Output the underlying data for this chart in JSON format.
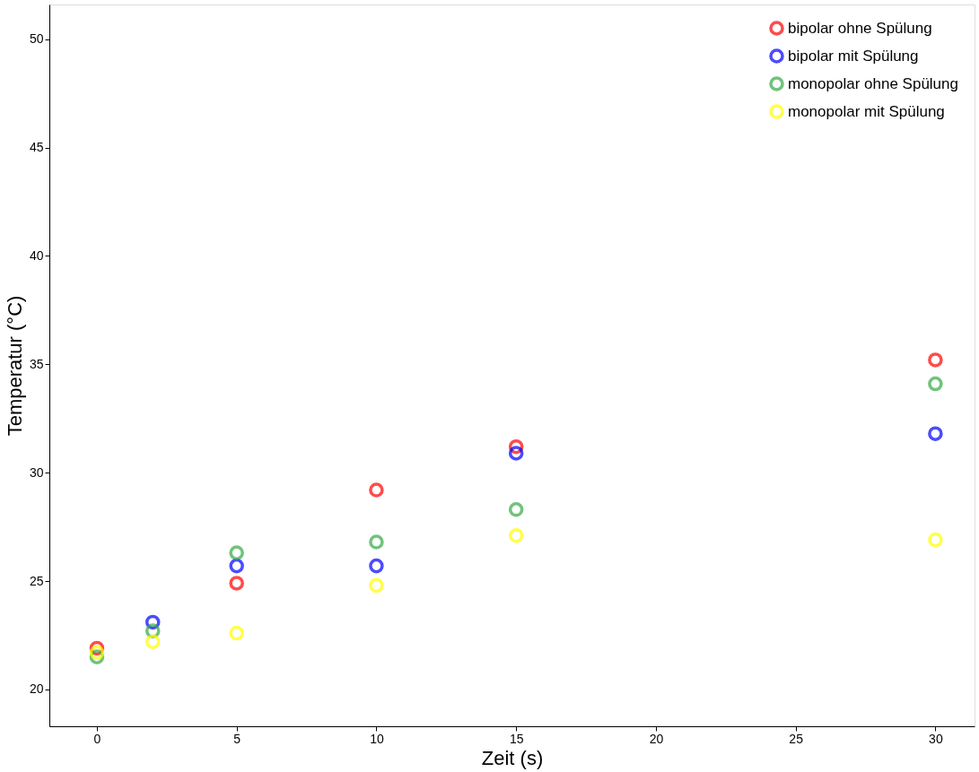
{
  "chart_data": {
    "type": "scatter",
    "xlabel": "Zeit (s)",
    "ylabel": "Temperatur (°C)",
    "x": [
      0,
      2,
      5,
      10,
      15,
      30
    ],
    "series": [
      {
        "name": "bipolar ohne Spülung",
        "color": "#ff0000",
        "values": [
          21.9,
          null,
          24.9,
          29.2,
          31.2,
          35.2
        ]
      },
      {
        "name": "bipolar mit Spülung",
        "color": "#0000ff",
        "values": [
          null,
          23.1,
          25.7,
          25.7,
          30.9,
          31.8
        ]
      },
      {
        "name": "monopolar ohne Spülung",
        "color": "#33aa44",
        "values": [
          21.5,
          22.7,
          26.3,
          26.8,
          28.3,
          34.1
        ]
      },
      {
        "name": "monopolar mit Spülung",
        "color": "#ffff00",
        "values": [
          21.7,
          22.2,
          22.6,
          24.8,
          27.1,
          26.9
        ]
      }
    ],
    "xlim": [
      -1.7,
      31.4
    ],
    "ylim": [
      18.3,
      51.6
    ],
    "xticks": [
      0,
      5,
      10,
      15,
      20,
      25,
      30
    ],
    "yticks": [
      20,
      25,
      30,
      35,
      40,
      45,
      50
    ],
    "grid": false,
    "legend": "top right",
    "marker": "circle"
  }
}
